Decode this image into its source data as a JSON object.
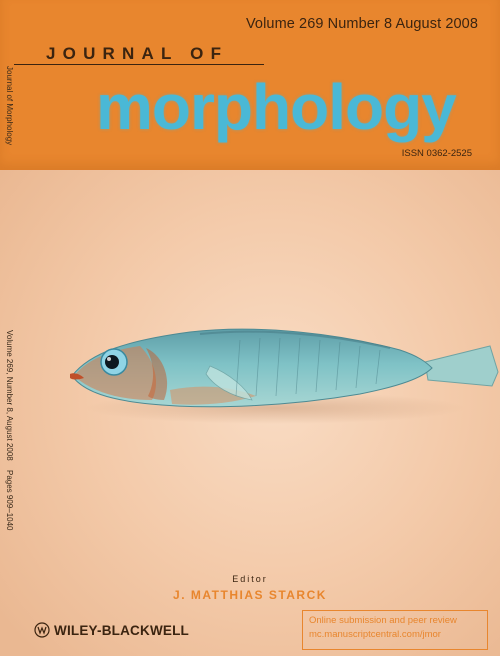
{
  "header": {
    "volume_line": "Volume 269  Number 8  August 2008",
    "journal_of": "JOURNAL OF",
    "title": "morphology",
    "issn": "ISSN 0362-2525"
  },
  "spine": {
    "journal_name": "Journal of Morphology",
    "issue": "Volume 269, Number 8, August 2008",
    "pages": "Pages 909–1040"
  },
  "editor": {
    "label": "Editor",
    "name": "J. MATTHIAS STARCK"
  },
  "publisher": {
    "name": "WILEY-BLACKWELL",
    "logo_icon": "wiley-crest-icon"
  },
  "online": {
    "line1": "Online submission and peer review",
    "line2": "mc.manuscriptcentral.com/jmor"
  },
  "colors": {
    "header_orange": "#e8862e",
    "title_blue": "#4ab8d6",
    "background_peach": "#f3c9a8",
    "text_dark": "#3b2410"
  }
}
